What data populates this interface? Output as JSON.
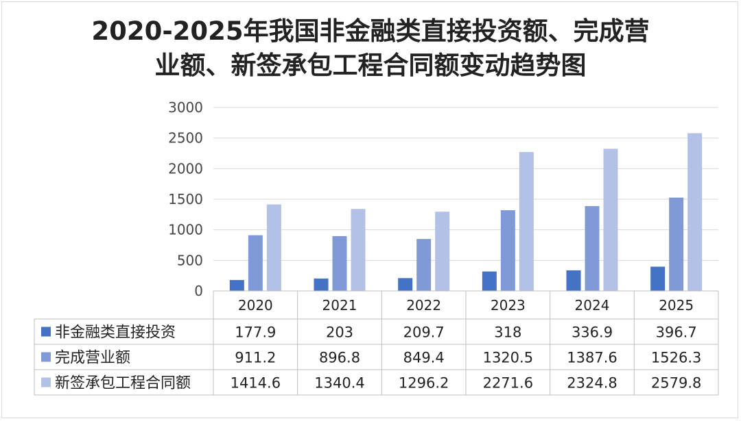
{
  "chart_data": {
    "type": "bar",
    "title_line1": "2020-2025年我国非金融类直接投资额、完成营",
    "title_line2": "业额、新签承包工程合同额变动趋势图",
    "categories": [
      "2020",
      "2021",
      "2022",
      "2023",
      "2024",
      "2025"
    ],
    "ylim": [
      0,
      3000
    ],
    "yticks": [
      "0",
      "500",
      "1000",
      "1500",
      "2000",
      "2500",
      "3000"
    ],
    "grid": true,
    "legend": "data-table",
    "series": [
      {
        "name": "非金融类直接投资",
        "color": "#4472c4",
        "values": [
          177.9,
          203,
          209.7,
          318,
          336.9,
          396.7
        ],
        "labels": [
          "177.9",
          "203",
          "209.7",
          "318",
          "336.9",
          "396.7"
        ]
      },
      {
        "name": "完成营业额",
        "color": "#7f9ad6",
        "values": [
          911.2,
          896.8,
          849.4,
          1320.5,
          1387.6,
          1526.3
        ],
        "labels": [
          "911.2",
          "896.8",
          "849.4",
          "1320.5",
          "1387.6",
          "1526.3"
        ]
      },
      {
        "name": "新签承包工程合同额",
        "color": "#b4c1e7",
        "values": [
          1414.6,
          1340.4,
          1296.2,
          2271.6,
          2324.8,
          2579.8
        ],
        "labels": [
          "1414.6",
          "1340.4",
          "1296.2",
          "2271.6",
          "2324.8",
          "2579.8"
        ]
      }
    ]
  }
}
